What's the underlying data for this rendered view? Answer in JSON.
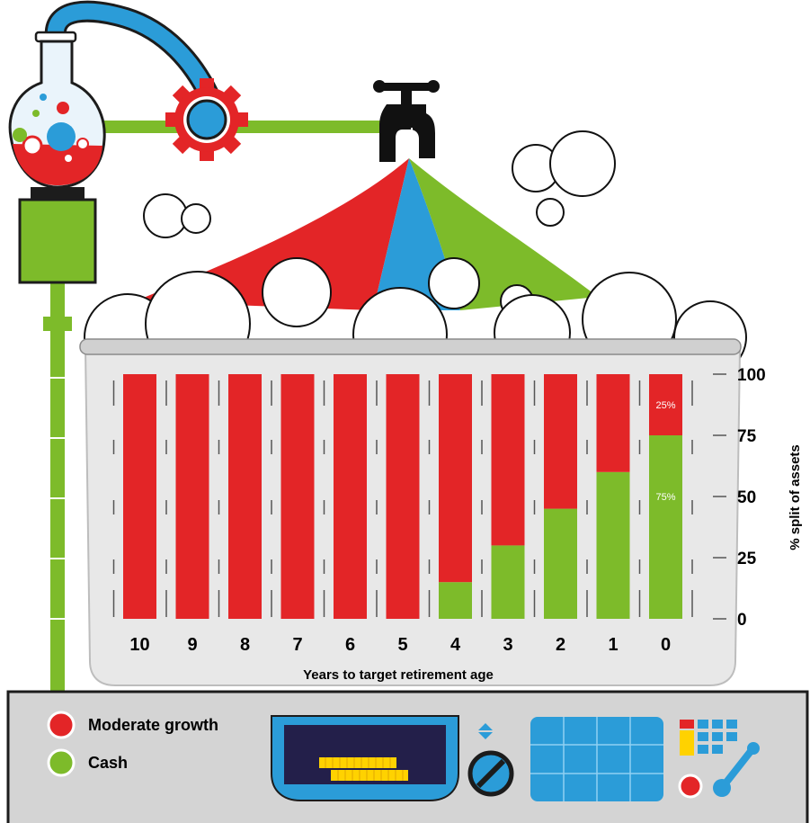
{
  "chart_data": {
    "type": "bar",
    "stacked": true,
    "categories": [
      "10",
      "9",
      "8",
      "7",
      "6",
      "5",
      "4",
      "3",
      "2",
      "1",
      "0"
    ],
    "series": [
      {
        "name": "Moderate growth",
        "color": "#e32527",
        "values": [
          100,
          100,
          100,
          100,
          100,
          100,
          85,
          70,
          55,
          40,
          25
        ]
      },
      {
        "name": "Cash",
        "color": "#7dbb2a",
        "values": [
          0,
          0,
          0,
          0,
          0,
          0,
          15,
          30,
          45,
          60,
          75
        ]
      }
    ],
    "data_labels": [
      {
        "category": "0",
        "series": "Moderate growth",
        "text": "25%"
      },
      {
        "category": "0",
        "series": "Cash",
        "text": "75%"
      }
    ],
    "xlabel": "Years to target retirement age",
    "ylabel": "% split of assets",
    "yticks": [
      "0",
      "25",
      "50",
      "75",
      "100"
    ],
    "ylim": [
      0,
      100
    ],
    "y_axis_side": "right",
    "legend_position": "bottom-left"
  },
  "legend": {
    "items": [
      {
        "label": "Moderate growth",
        "color": "#e32527"
      },
      {
        "label": "Cash",
        "color": "#7dbb2a"
      }
    ]
  },
  "illustration": {
    "colors": {
      "red": "#e32527",
      "green": "#7dbb2a",
      "blue": "#2b9cd8",
      "grey": "#d9d9d9",
      "navy": "#231f4a",
      "yellow": "#ffd200"
    },
    "icons": [
      "flask-icon",
      "gear-icon",
      "tap-icon",
      "bubbles-icon",
      "tub-icon",
      "coin-slot-icon",
      "dial-icon",
      "keypad-icon",
      "lever-icon"
    ]
  }
}
